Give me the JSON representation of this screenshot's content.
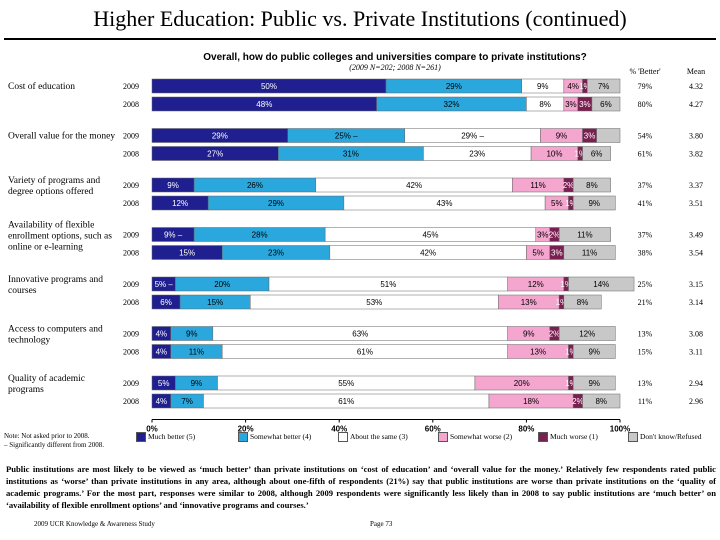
{
  "page": {
    "title": "Higher Education:  Public vs. Private Institutions (continued)",
    "note_line1": "Note:  Not asked prior to 2008.",
    "note_line2": "– Significantly different from 2008.",
    "summary": "Public institutions are most likely to be viewed as ‘much better’ than private institutions on ‘cost of education’ and ‘overall value for the money.’ Relatively few respondents rated public institutions as ‘worse’ than private institutions in any area, although about one-fifth of respondents (21%) say that public institutions are worse than private institutions on the ‘quality of academic programs.’ For the most part, responses were similar to 2008, although 2009 respondents were significantly less likely than in 2008 to say public institutions are ‘much better’ on ‘availability of flexible enrollment options’ and ‘innovative programs and courses.’",
    "footer_left": "2009 UCR Knowledge & Awareness Study",
    "footer_center": "Page 73"
  },
  "chart_data": {
    "type": "bar",
    "orientation": "horizontal",
    "stacked": true,
    "title": "Overall, how do public colleges and universities compare to private institutions?",
    "subtitle": "(2009 N=202; 2008 N=261)",
    "col_header_better": "% 'Better'",
    "col_header_mean": "Mean",
    "xlim": [
      0,
      100
    ],
    "x_ticks": [
      "0%",
      "20%",
      "40%",
      "60%",
      "80%",
      "100%"
    ],
    "series": [
      {
        "name": "Much better (5)",
        "color": "#1f1f8f",
        "text_color": "#ffffff"
      },
      {
        "name": "Somewhat better (4)",
        "color": "#2aa7dc",
        "text_color": "#000000"
      },
      {
        "name": "About the same (3)",
        "color": "#ffffff",
        "text_color": "#000000"
      },
      {
        "name": "Somewhat worse (2)",
        "color": "#f4a6cf",
        "text_color": "#000000"
      },
      {
        "name": "Much worse (1)",
        "color": "#7a2050",
        "text_color": "#ffffff"
      },
      {
        "name": "Don't know/Refused",
        "color": "#c8c8c8",
        "text_color": "#000000"
      }
    ],
    "groups": [
      {
        "label": "Cost of education",
        "rows": [
          {
            "year": "2009",
            "values": [
              50,
              29,
              9,
              4,
              1,
              7
            ],
            "labels": [
              "50%",
              "29%",
              "9%",
              "4%",
              "1%",
              "7%"
            ],
            "better": "79%",
            "mean": "4.32"
          },
          {
            "year": "2008",
            "values": [
              48,
              32,
              8,
              3,
              3,
              6
            ],
            "labels": [
              "48%",
              "32%",
              "8%",
              "3%",
              "3%",
              "6%"
            ],
            "better": "80%",
            "mean": "4.27"
          }
        ]
      },
      {
        "label": "Overall value for the money",
        "rows": [
          {
            "year": "2009",
            "values": [
              29,
              25,
              29,
              9,
              3,
              5
            ],
            "labels": [
              "29%",
              "25% –",
              "29% –",
              "9%",
              "3%",
              ""
            ],
            "better": "54%",
            "mean": "3.80"
          },
          {
            "year": "2008",
            "values": [
              27,
              31,
              23,
              10,
              1,
              6
            ],
            "labels": [
              "27%",
              "31%",
              "23%",
              "10%",
              "1%",
              "6%"
            ],
            "better": "61%",
            "mean": "3.82"
          }
        ]
      },
      {
        "label": "Variety of programs and degree options offered",
        "rows": [
          {
            "year": "2009",
            "values": [
              9,
              26,
              42,
              11,
              2,
              8
            ],
            "labels": [
              "9%",
              "26%",
              "42%",
              "11%",
              "2%",
              "8%"
            ],
            "better": "37%",
            "mean": "3.37"
          },
          {
            "year": "2008",
            "values": [
              12,
              29,
              43,
              5,
              1,
              9
            ],
            "labels": [
              "12%",
              "29%",
              "43%",
              "5%",
              "1%",
              "9%"
            ],
            "better": "41%",
            "mean": "3.51"
          }
        ]
      },
      {
        "label": "Availability of flexible enrollment options, such as online or e-learning",
        "rows": [
          {
            "year": "2009",
            "values": [
              9,
              28,
              45,
              3,
              2,
              11
            ],
            "labels": [
              "9% –",
              "28%",
              "45%",
              "3%",
              "2%",
              "11%"
            ],
            "better": "37%",
            "mean": "3.49"
          },
          {
            "year": "2008",
            "values": [
              15,
              23,
              42,
              5,
              3,
              11
            ],
            "labels": [
              "15%",
              "23%",
              "42%",
              "5%",
              "3%",
              "11%"
            ],
            "better": "38%",
            "mean": "3.54"
          }
        ]
      },
      {
        "label": "Innovative programs and courses",
        "rows": [
          {
            "year": "2009",
            "values": [
              5,
              20,
              51,
              12,
              1,
              14
            ],
            "labels": [
              "5% –",
              "20%",
              "51%",
              "12%",
              "1%",
              "14%"
            ],
            "better": "25%",
            "mean": "3.15"
          },
          {
            "year": "2008",
            "values": [
              6,
              15,
              53,
              13,
              1,
              8
            ],
            "labels": [
              "6%",
              "15%",
              "53%",
              "13%",
              "1%",
              "8%"
            ],
            "better": "21%",
            "mean": "3.14"
          }
        ]
      },
      {
        "label": "Access to computers and technology",
        "rows": [
          {
            "year": "2009",
            "values": [
              4,
              9,
              63,
              9,
              2,
              12
            ],
            "labels": [
              "4%",
              "9%",
              "63%",
              "9%",
              "2%",
              "12%"
            ],
            "better": "13%",
            "mean": "3.08"
          },
          {
            "year": "2008",
            "values": [
              4,
              11,
              61,
              13,
              1,
              9
            ],
            "labels": [
              "4%",
              "11%",
              "61%",
              "13%",
              "1%",
              "9%"
            ],
            "better": "15%",
            "mean": "3.11"
          }
        ]
      },
      {
        "label": "Quality of academic programs",
        "rows": [
          {
            "year": "2009",
            "values": [
              5,
              9,
              55,
              20,
              1,
              9
            ],
            "labels": [
              "5%",
              "9%",
              "55%",
              "20%",
              "1%",
              "9%"
            ],
            "better": "13%",
            "mean": "2.94"
          },
          {
            "year": "2008",
            "values": [
              4,
              7,
              61,
              18,
              2,
              8
            ],
            "labels": [
              "4%",
              "7%",
              "61%",
              "18%",
              "2%",
              "8%"
            ],
            "better": "11%",
            "mean": "2.96"
          }
        ]
      }
    ]
  }
}
